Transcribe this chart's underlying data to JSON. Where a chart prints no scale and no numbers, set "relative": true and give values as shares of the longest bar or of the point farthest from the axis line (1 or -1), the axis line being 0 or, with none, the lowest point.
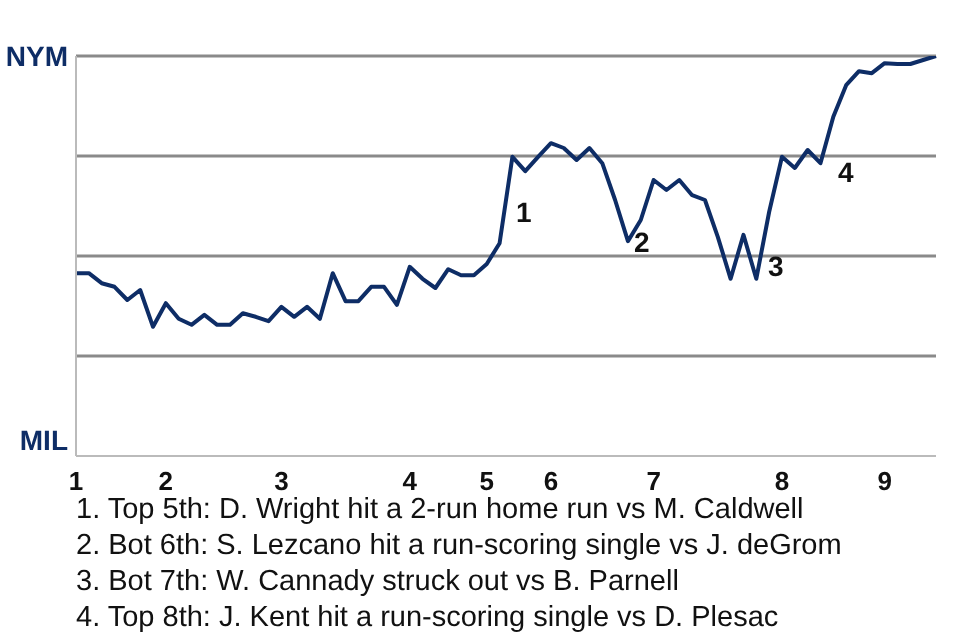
{
  "chart_data": {
    "type": "line",
    "relative": true,
    "grid": "y",
    "categories": [
      "1",
      null,
      null,
      null,
      null,
      null,
      null,
      "2",
      null,
      null,
      null,
      null,
      null,
      null,
      null,
      null,
      "3",
      null,
      null,
      null,
      null,
      null,
      null,
      null,
      null,
      null,
      "4",
      null,
      null,
      null,
      null,
      null,
      "5",
      null,
      null,
      null,
      null,
      "6",
      null,
      null,
      null,
      null,
      null,
      null,
      null,
      "7",
      null,
      null,
      null,
      null,
      null,
      null,
      null,
      null,
      null,
      "8",
      null,
      null,
      null,
      null,
      null,
      null,
      null,
      "9",
      null,
      null,
      null,
      null
    ],
    "series": [
      {
        "color": "#0e2d66",
        "values": [
          0.457,
          0.457,
          0.432,
          0.423,
          0.39,
          0.415,
          0.323,
          0.382,
          0.343,
          0.328,
          0.353,
          0.328,
          0.328,
          0.357,
          0.348,
          0.337,
          0.373,
          0.348,
          0.373,
          0.343,
          0.457,
          0.387,
          0.387,
          0.423,
          0.423,
          0.378,
          0.473,
          0.443,
          0.42,
          0.467,
          0.452,
          0.452,
          0.48,
          0.532,
          0.748,
          0.712,
          0.748,
          0.782,
          0.77,
          0.74,
          0.77,
          0.732,
          0.64,
          0.537,
          0.59,
          0.69,
          0.665,
          0.69,
          0.652,
          0.64,
          0.548,
          0.443,
          0.553,
          0.443,
          0.61,
          0.748,
          0.72,
          0.765,
          0.732,
          0.848,
          0.927,
          0.962,
          0.957,
          0.982,
          0.98,
          0.98,
          0.99,
          1
        ]
      }
    ],
    "annotations": [
      "NYM",
      "MIL",
      "1",
      "2",
      "3",
      "4",
      "1. Top 5th: D. Wright hit a 2-run home run vs M. Caldwell",
      "2. Bot 6th: S. Lezcano hit a run-scoring single vs J. deGrom",
      "3. Bot 7th: W. Cannady struck out vs B. Parnell",
      "4. Top 8th: J. Kent hit a run-scoring single vs D. Plesac"
    ]
  }
}
